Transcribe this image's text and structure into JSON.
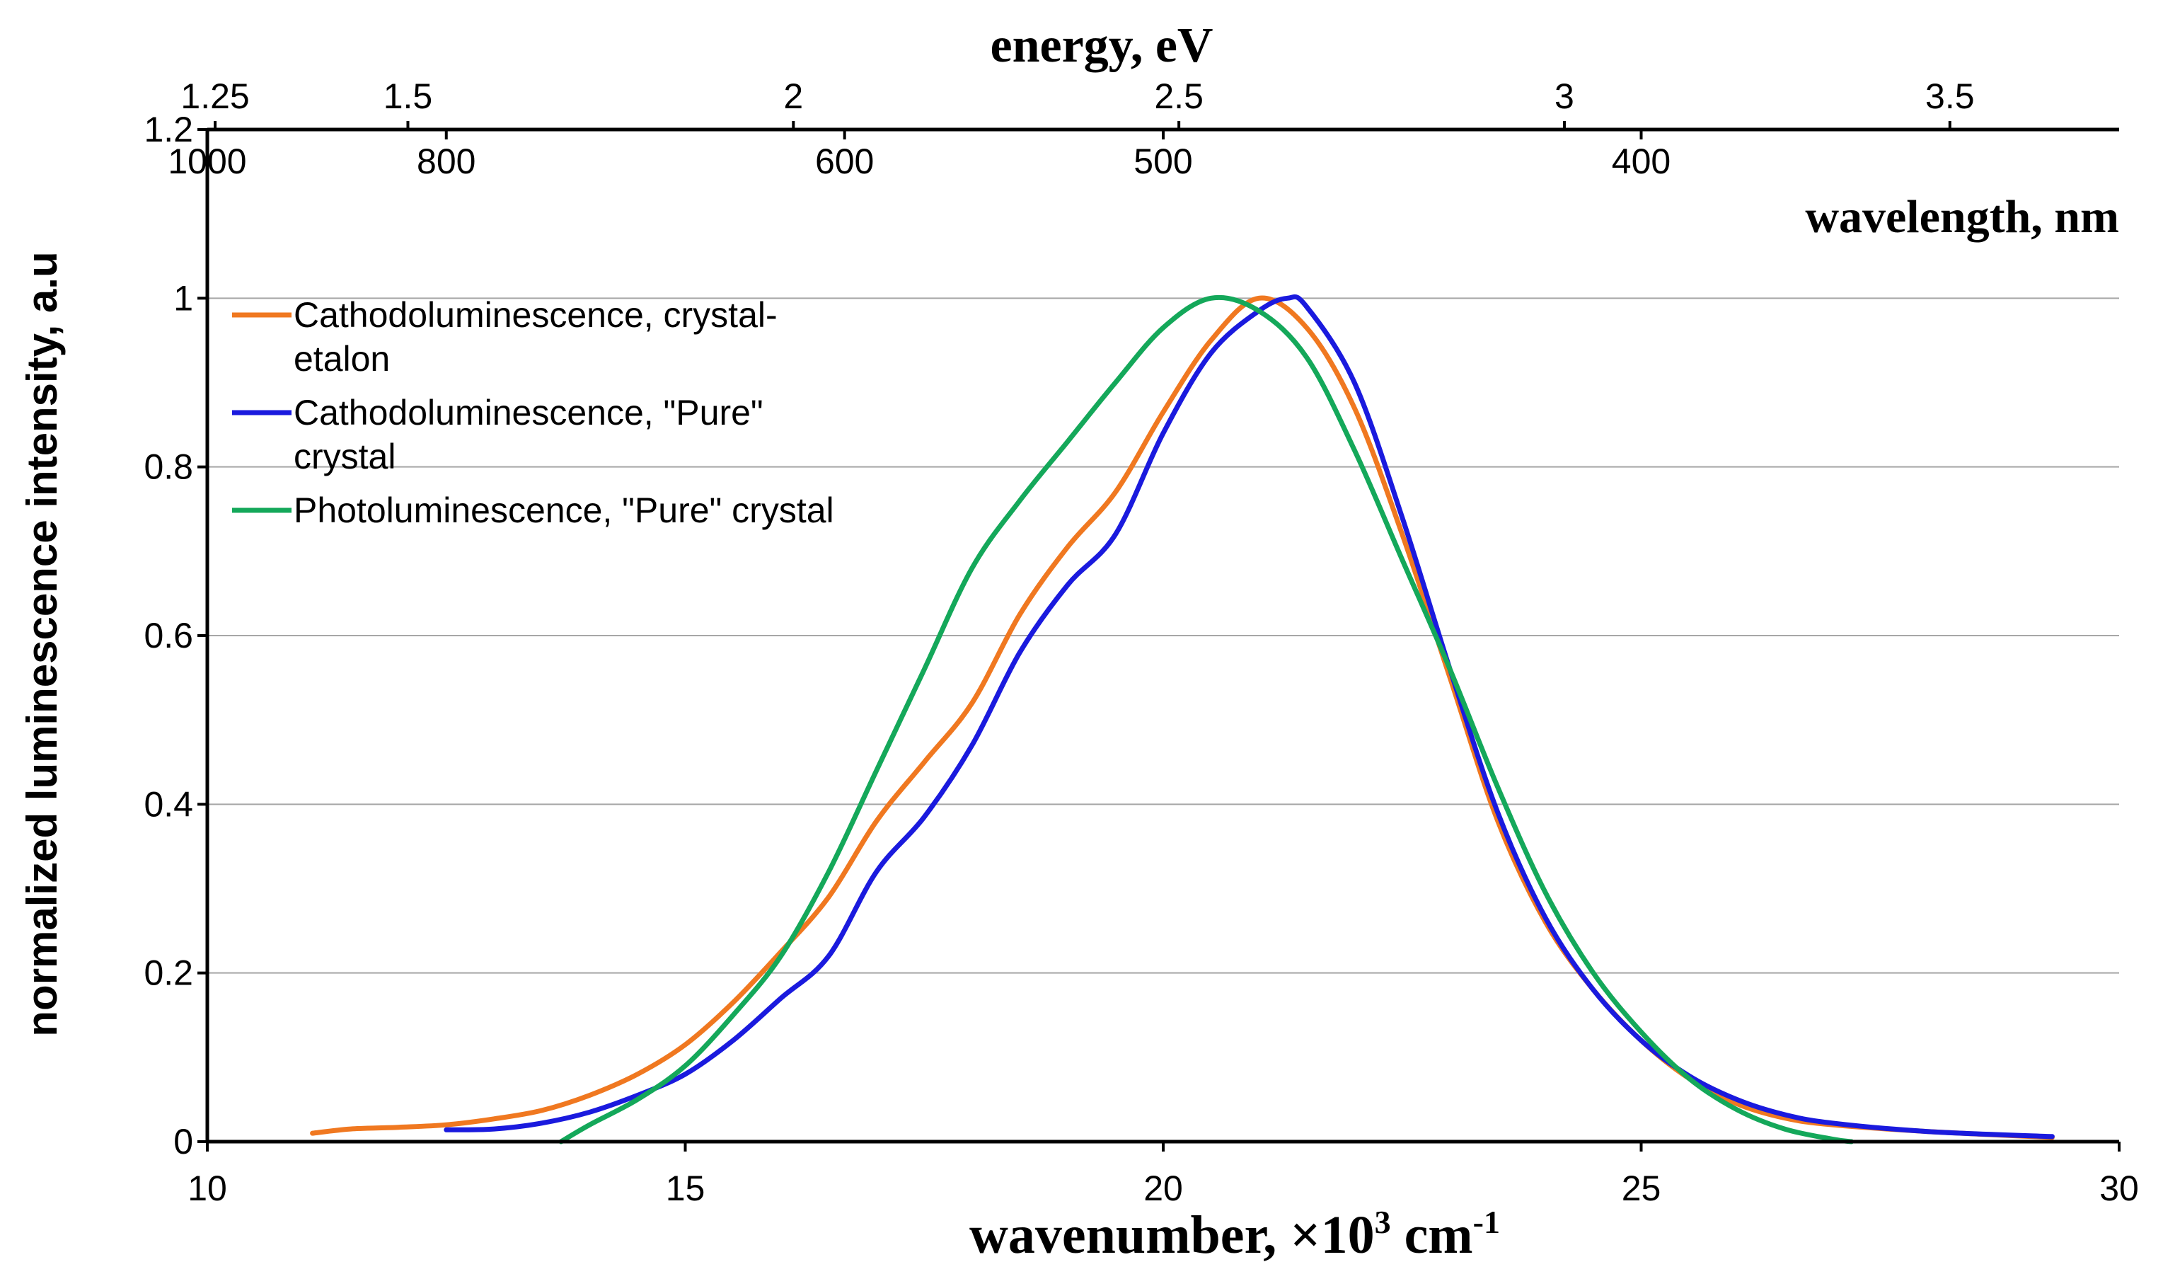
{
  "chart_data": {
    "type": "line",
    "title": "",
    "xlabel_prefix": "wavenumber, ×10",
    "xlabel_exp": "3",
    "xlabel_unit": " cm",
    "xlabel_unit_exp": "-1",
    "ylabel": "normalized luminescence intensity, a.u",
    "top_axis_energy_label": "energy, eV",
    "top_axis_wavelength_label": "wavelength, nm",
    "xlim": [
      10,
      30
    ],
    "ylim": [
      0,
      1.2
    ],
    "x_ticks": [
      "10",
      "15",
      "20",
      "25",
      "30"
    ],
    "y_ticks": [
      "0",
      "0.2",
      "0.4",
      "0.6",
      "0.8",
      "1",
      "1.2"
    ],
    "energy_ticks": [
      {
        "label": "1.25",
        "value": 1.25
      },
      {
        "label": "1.5",
        "value": 1.5
      },
      {
        "label": "2",
        "value": 2
      },
      {
        "label": "2.5",
        "value": 2.5
      },
      {
        "label": "3",
        "value": 3
      },
      {
        "label": "3.5",
        "value": 3.5
      }
    ],
    "wavelength_ticks": [
      {
        "label": "1000",
        "value": 1000
      },
      {
        "label": "800",
        "value": 800
      },
      {
        "label": "600",
        "value": 600
      },
      {
        "label": "500",
        "value": 500
      },
      {
        "label": "400",
        "value": 400
      }
    ],
    "grid": "horizontal",
    "legend_position": "top-left",
    "series": [
      {
        "name": "Cathodoluminescence, crystal-etalon",
        "legend_lines": [
          "Cathodoluminescence, crystal-",
          "etalon"
        ],
        "color": "#F07820",
        "points": [
          [
            11.1,
            0.01
          ],
          [
            11.5,
            0.015
          ],
          [
            12.0,
            0.017
          ],
          [
            12.5,
            0.02
          ],
          [
            13.0,
            0.027
          ],
          [
            13.5,
            0.037
          ],
          [
            14.0,
            0.055
          ],
          [
            14.5,
            0.08
          ],
          [
            15.0,
            0.115
          ],
          [
            15.5,
            0.165
          ],
          [
            16.0,
            0.225
          ],
          [
            16.5,
            0.29
          ],
          [
            17.0,
            0.38
          ],
          [
            17.5,
            0.45
          ],
          [
            18.0,
            0.52
          ],
          [
            18.5,
            0.625
          ],
          [
            19.0,
            0.705
          ],
          [
            19.5,
            0.77
          ],
          [
            20.0,
            0.865
          ],
          [
            20.5,
            0.95
          ],
          [
            21.0,
            1.0
          ],
          [
            21.5,
            0.965
          ],
          [
            22.0,
            0.87
          ],
          [
            22.5,
            0.72
          ],
          [
            23.0,
            0.55
          ],
          [
            23.5,
            0.38
          ],
          [
            24.0,
            0.26
          ],
          [
            24.5,
            0.18
          ],
          [
            25.0,
            0.12
          ],
          [
            25.5,
            0.075
          ],
          [
            26.0,
            0.045
          ],
          [
            26.5,
            0.028
          ],
          [
            27.0,
            0.02
          ],
          [
            28.0,
            0.012
          ],
          [
            29.3,
            0.005
          ]
        ]
      },
      {
        "name": "Cathodoluminescence, \"Pure\" crystal",
        "legend_lines": [
          "Cathodoluminescence, \"Pure\"",
          "crystal"
        ],
        "color": "#1A1ADE",
        "points": [
          [
            12.5,
            0.014
          ],
          [
            13.0,
            0.015
          ],
          [
            13.5,
            0.022
          ],
          [
            14.0,
            0.035
          ],
          [
            14.5,
            0.055
          ],
          [
            15.0,
            0.08
          ],
          [
            15.5,
            0.12
          ],
          [
            16.0,
            0.17
          ],
          [
            16.5,
            0.22
          ],
          [
            17.0,
            0.32
          ],
          [
            17.5,
            0.385
          ],
          [
            18.0,
            0.47
          ],
          [
            18.5,
            0.58
          ],
          [
            19.0,
            0.66
          ],
          [
            19.5,
            0.72
          ],
          [
            20.0,
            0.84
          ],
          [
            20.5,
            0.935
          ],
          [
            21.0,
            0.985
          ],
          [
            21.3,
            1.0
          ],
          [
            21.5,
            0.99
          ],
          [
            22.0,
            0.9
          ],
          [
            22.5,
            0.74
          ],
          [
            23.0,
            0.56
          ],
          [
            23.5,
            0.39
          ],
          [
            24.0,
            0.265
          ],
          [
            24.5,
            0.18
          ],
          [
            25.0,
            0.12
          ],
          [
            25.5,
            0.078
          ],
          [
            26.0,
            0.05
          ],
          [
            26.5,
            0.032
          ],
          [
            27.0,
            0.022
          ],
          [
            28.0,
            0.012
          ],
          [
            29.3,
            0.006
          ]
        ]
      },
      {
        "name": "Photoluminescence, \"Pure\" crystal",
        "legend_lines": [
          "Photoluminescence, \"Pure\" crystal"
        ],
        "color": "#14A85A",
        "points": [
          [
            13.7,
            0.0
          ],
          [
            14.0,
            0.02
          ],
          [
            14.5,
            0.05
          ],
          [
            15.0,
            0.09
          ],
          [
            15.5,
            0.15
          ],
          [
            16.0,
            0.22
          ],
          [
            16.5,
            0.32
          ],
          [
            17.0,
            0.44
          ],
          [
            17.5,
            0.56
          ],
          [
            18.0,
            0.68
          ],
          [
            18.5,
            0.76
          ],
          [
            19.0,
            0.83
          ],
          [
            19.5,
            0.9
          ],
          [
            20.0,
            0.965
          ],
          [
            20.5,
            1.0
          ],
          [
            21.0,
            0.985
          ],
          [
            21.5,
            0.93
          ],
          [
            22.0,
            0.82
          ],
          [
            22.5,
            0.69
          ],
          [
            23.0,
            0.56
          ],
          [
            23.5,
            0.42
          ],
          [
            24.0,
            0.295
          ],
          [
            24.5,
            0.2
          ],
          [
            25.0,
            0.13
          ],
          [
            25.5,
            0.075
          ],
          [
            26.0,
            0.038
          ],
          [
            26.5,
            0.015
          ],
          [
            27.0,
            0.003
          ],
          [
            27.2,
            0.0
          ]
        ]
      }
    ]
  }
}
